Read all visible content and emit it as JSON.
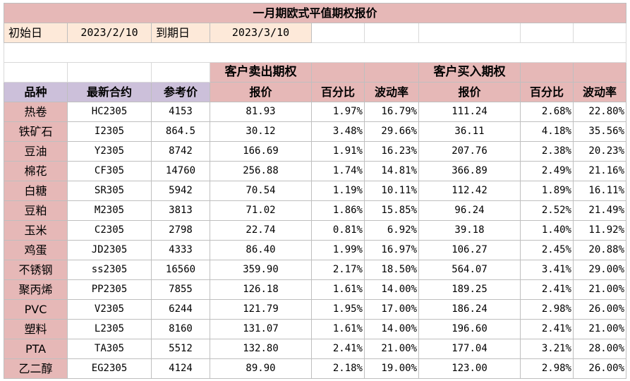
{
  "title": "一月期欧式平值期权报价",
  "info": {
    "start_label": "初始日",
    "start_value": "2023/2/10",
    "end_label": "到期日",
    "end_value": "2023/3/10"
  },
  "groups": {
    "sell": "客户卖出期权",
    "buy": "客户买入期权"
  },
  "headers": [
    "品种",
    "最新合约",
    "参考价",
    "报价",
    "百分比",
    "波动率",
    "报价",
    "百分比",
    "波动率"
  ],
  "rows": [
    {
      "name": "热卷",
      "contract": "HC2305",
      "ref": "4153",
      "sell_price": "81.93",
      "sell_pct": "1.97%",
      "sell_vol": "16.79%",
      "buy_price": "111.24",
      "buy_pct": "2.68%",
      "buy_vol": "22.80%"
    },
    {
      "name": "铁矿石",
      "contract": "I2305",
      "ref": "864.5",
      "sell_price": "30.12",
      "sell_pct": "3.48%",
      "sell_vol": "29.66%",
      "buy_price": "36.11",
      "buy_pct": "4.18%",
      "buy_vol": "35.56%"
    },
    {
      "name": "豆油",
      "contract": "Y2305",
      "ref": "8742",
      "sell_price": "166.69",
      "sell_pct": "1.91%",
      "sell_vol": "16.23%",
      "buy_price": "207.76",
      "buy_pct": "2.38%",
      "buy_vol": "20.23%"
    },
    {
      "name": "棉花",
      "contract": "CF305",
      "ref": "14760",
      "sell_price": "256.88",
      "sell_pct": "1.74%",
      "sell_vol": "14.81%",
      "buy_price": "366.89",
      "buy_pct": "2.49%",
      "buy_vol": "21.16%"
    },
    {
      "name": "白糖",
      "contract": "SR305",
      "ref": "5942",
      "sell_price": "70.54",
      "sell_pct": "1.19%",
      "sell_vol": "10.11%",
      "buy_price": "112.42",
      "buy_pct": "1.89%",
      "buy_vol": "16.11%"
    },
    {
      "name": "豆粕",
      "contract": "M2305",
      "ref": "3813",
      "sell_price": "71.02",
      "sell_pct": "1.86%",
      "sell_vol": "15.85%",
      "buy_price": "96.24",
      "buy_pct": "2.52%",
      "buy_vol": "21.49%"
    },
    {
      "name": "玉米",
      "contract": "C2305",
      "ref": "2798",
      "sell_price": "22.74",
      "sell_pct": "0.81%",
      "sell_vol": "6.92%",
      "buy_price": "39.18",
      "buy_pct": "1.40%",
      "buy_vol": "11.92%"
    },
    {
      "name": "鸡蛋",
      "contract": "JD2305",
      "ref": "4333",
      "sell_price": "86.40",
      "sell_pct": "1.99%",
      "sell_vol": "16.97%",
      "buy_price": "106.27",
      "buy_pct": "2.45%",
      "buy_vol": "20.88%"
    },
    {
      "name": "不锈钢",
      "contract": "ss2305",
      "ref": "16560",
      "sell_price": "359.90",
      "sell_pct": "2.17%",
      "sell_vol": "18.50%",
      "buy_price": "564.07",
      "buy_pct": "3.41%",
      "buy_vol": "29.00%"
    },
    {
      "name": "聚丙烯",
      "contract": "PP2305",
      "ref": "7855",
      "sell_price": "126.18",
      "sell_pct": "1.61%",
      "sell_vol": "14.00%",
      "buy_price": "189.25",
      "buy_pct": "2.41%",
      "buy_vol": "21.00%"
    },
    {
      "name": "PVC",
      "contract": "V2305",
      "ref": "6244",
      "sell_price": "121.79",
      "sell_pct": "1.95%",
      "sell_vol": "17.00%",
      "buy_price": "186.24",
      "buy_pct": "2.98%",
      "buy_vol": "26.00%"
    },
    {
      "name": "塑料",
      "contract": "L2305",
      "ref": "8160",
      "sell_price": "131.07",
      "sell_pct": "1.61%",
      "sell_vol": "14.00%",
      "buy_price": "196.60",
      "buy_pct": "2.41%",
      "buy_vol": "21.00%"
    },
    {
      "name": "PTA",
      "contract": "TA305",
      "ref": "5512",
      "sell_price": "132.80",
      "sell_pct": "2.41%",
      "sell_vol": "21.00%",
      "buy_price": "177.04",
      "buy_pct": "3.21%",
      "buy_vol": "28.00%"
    },
    {
      "name": "乙二醇",
      "contract": "EG2305",
      "ref": "4124",
      "sell_price": "89.90",
      "sell_pct": "2.18%",
      "sell_vol": "19.00%",
      "buy_price": "123.00",
      "buy_pct": "2.98%",
      "buy_vol": "26.00%"
    }
  ]
}
